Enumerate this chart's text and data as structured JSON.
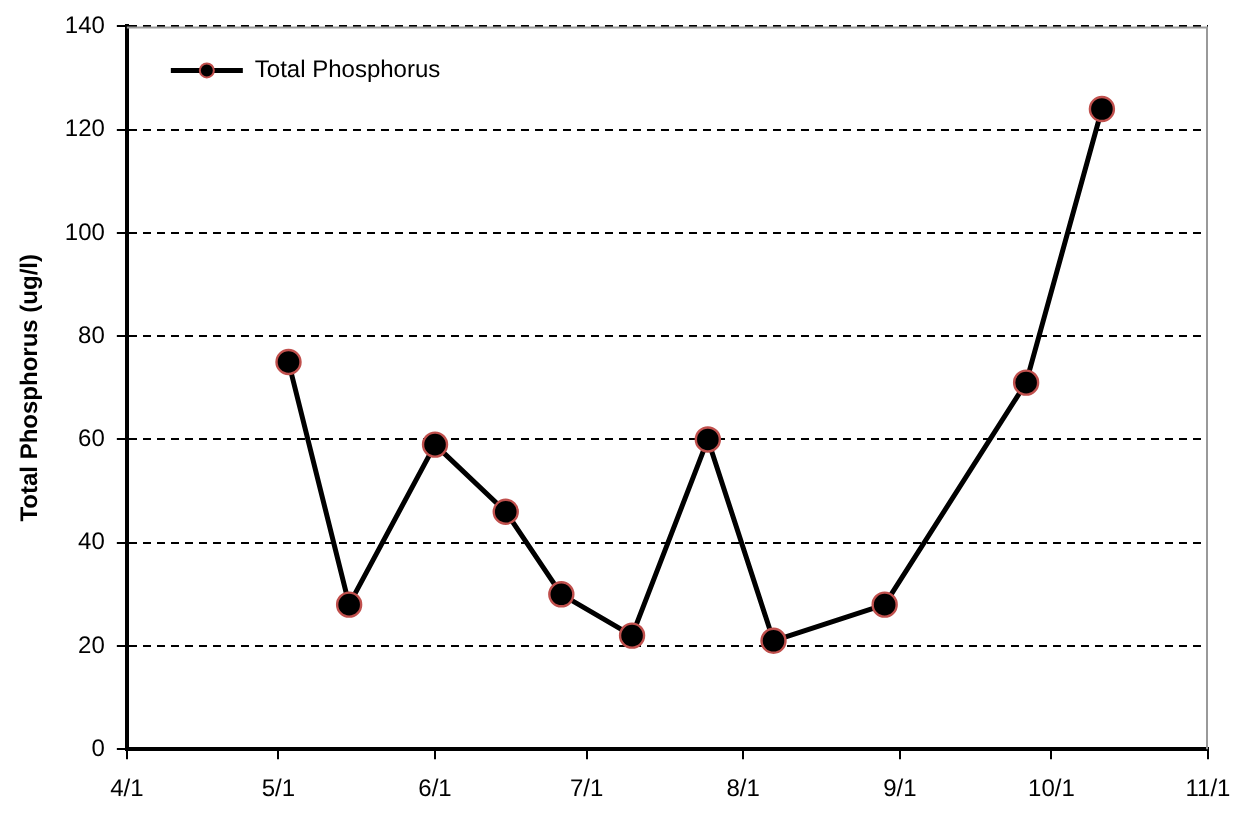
{
  "chart_data": {
    "type": "line",
    "ylabel": "Total Phosphorus (ug/l)",
    "x": [
      "--05-03",
      "--05-15",
      "--06-01",
      "--06-15",
      "--06-26",
      "--07-10",
      "--07-25",
      "--08-07",
      "--08-29",
      "--09-26",
      "--10-11"
    ],
    "series": [
      {
        "name": "Total Phosphorus",
        "color": "#000000",
        "values": [
          75,
          28,
          59,
          46,
          30,
          22,
          60,
          21,
          28,
          71,
          124
        ]
      }
    ],
    "xlim": [
      "--04-01",
      "--11-01"
    ],
    "xticks": [
      {
        "value": "--04-01",
        "label": "4/1"
      },
      {
        "value": "--05-01",
        "label": "5/1"
      },
      {
        "value": "--06-01",
        "label": "6/1"
      },
      {
        "value": "--07-01",
        "label": "7/1"
      },
      {
        "value": "--08-01",
        "label": "8/1"
      },
      {
        "value": "--09-01",
        "label": "9/1"
      },
      {
        "value": "--10-01",
        "label": "10/1"
      },
      {
        "value": "--11-01",
        "label": "11/1"
      }
    ],
    "ylim": [
      0,
      140
    ],
    "yticks": [
      0,
      20,
      40,
      60,
      80,
      100,
      120,
      140
    ],
    "grid": "y",
    "legend": "top left",
    "marker": "circle",
    "line_style": "solid"
  }
}
